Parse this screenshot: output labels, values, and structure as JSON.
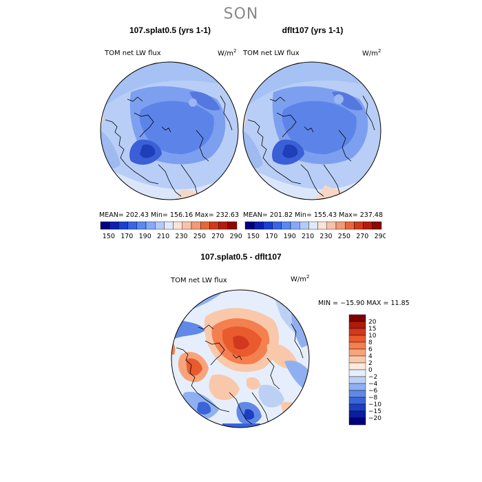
{
  "season": "SON",
  "panels": [
    {
      "title": "107.splat0.5 (yrs 1-1)",
      "field": "TOM net LW flux",
      "units": "W/m",
      "units_sup": "2",
      "stats": "MEAN= 202.43   Min= 156.16   Max= 232.63"
    },
    {
      "title": "dflt107 (yrs 1-1)",
      "field": "TOM net LW flux",
      "units": "W/m",
      "units_sup": "2",
      "stats": "MEAN= 201.82   Min= 155.43   Max= 237.48"
    }
  ],
  "abs_colorbar": {
    "ticks": [
      "150",
      "170",
      "190",
      "210",
      "230",
      "250",
      "270",
      "290"
    ],
    "colors": [
      "#00007f",
      "#0d1fb0",
      "#1c3fd0",
      "#3a64e6",
      "#5b87f0",
      "#86a9f5",
      "#b3cbf8",
      "#dfe9fb",
      "#fbe3d6",
      "#f7c2a8",
      "#f09b76",
      "#e4673f",
      "#cf3a1d",
      "#b31b0f",
      "#8a0a04"
    ]
  },
  "diff": {
    "title": "107.splat0.5 - dflt107",
    "field": "TOM net LW flux",
    "units": "W/m",
    "units_sup": "2",
    "stats": "MIN = −15.90  MAX =  11.85",
    "colorbar": {
      "labels": [
        "20",
        "15",
        "10",
        "8",
        "6",
        "4",
        "2",
        "0",
        "−2",
        "−4",
        "−6",
        "−8",
        "−10",
        "−15",
        "−20"
      ],
      "colors": [
        "#7f0000",
        "#b01a0c",
        "#d2381d",
        "#ea5a2f",
        "#f47f4f",
        "#f7a47c",
        "#f9c8ab",
        "#fde9dd",
        "#e6eefb",
        "#bcd0f6",
        "#8fb0f0",
        "#6088e6",
        "#3a64d8",
        "#1b3fbf",
        "#0a1f9c",
        "#000080"
      ]
    }
  }
}
